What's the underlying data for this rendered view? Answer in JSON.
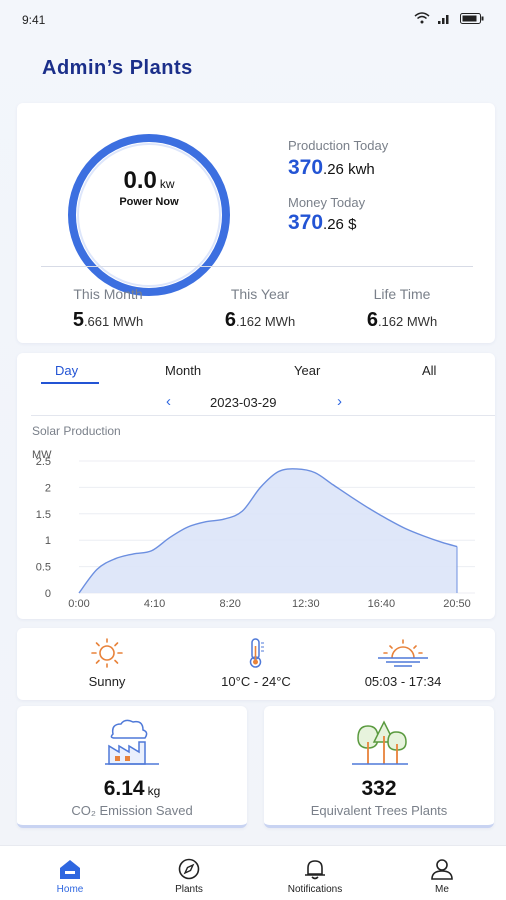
{
  "status_bar": {
    "time": "9:41"
  },
  "page_title": "Admin’s Plants",
  "gauge": {
    "value": "0.0",
    "unit": "kw",
    "label": "Power Now"
  },
  "production_today": {
    "label": "Production Today",
    "value_int": "370",
    "value_dec": ".26 kwh"
  },
  "money_today": {
    "label": "Money Today",
    "value_int": "370",
    "value_dec": ".26 $"
  },
  "periods": [
    {
      "label": "This Month",
      "value_int": "5",
      "value_dec": ".661 MWh"
    },
    {
      "label": "This Year",
      "value_int": "6",
      "value_dec": ".162 MWh"
    },
    {
      "label": "Life Time",
      "value_int": "6",
      "value_dec": ".162 MWh"
    }
  ],
  "tabs": [
    {
      "label": "Day",
      "active": true
    },
    {
      "label": "Month",
      "active": false
    },
    {
      "label": "Year",
      "active": false
    },
    {
      "label": "All",
      "active": false
    }
  ],
  "date": "2023-03-29",
  "chart_title": "Solar Production",
  "chart_data": {
    "type": "area",
    "title": "",
    "xlabel": "",
    "ylabel": "MW",
    "ylim": [
      0,
      2.5
    ],
    "yticks": [
      "0",
      "0.5",
      "1",
      "1.5",
      "2",
      "2.5"
    ],
    "xticks": [
      "0:00",
      "4:10",
      "8:20",
      "12:30",
      "16:40",
      "20:50"
    ],
    "grid": true,
    "series": [
      {
        "x": [
          "0:00",
          "1:00",
          "2:00",
          "3:00",
          "4:00",
          "5:00",
          "6:00",
          "7:00",
          "8:00",
          "9:00",
          "10:00",
          "11:00",
          "12:00",
          "13:00",
          "14:00",
          "15:00",
          "16:00",
          "17:00",
          "18:00",
          "19:00",
          "20:00",
          "20:50"
        ],
        "values": [
          0,
          0.45,
          0.65,
          0.74,
          0.8,
          1.05,
          1.25,
          1.35,
          1.4,
          1.55,
          2.0,
          2.3,
          2.35,
          2.28,
          2.05,
          1.82,
          1.6,
          1.4,
          1.22,
          1.08,
          0.96,
          0.88
        ]
      }
    ],
    "colors": {
      "line": "#6c8fe0",
      "fill": "#dbe4f8"
    }
  },
  "weather": [
    {
      "icon": "sun-icon",
      "text": "Sunny"
    },
    {
      "icon": "thermometer-icon",
      "text": "10°C - 24°C"
    },
    {
      "icon": "sunrise-icon",
      "text": "05:03 - 17:34"
    }
  ],
  "co2": {
    "value": "6.14",
    "unit": "kg",
    "label": "CO₂ Emission Saved",
    "icon": "factory-cloud-icon"
  },
  "trees": {
    "value": "332",
    "label": "Equivalent Trees Plants",
    "icon": "trees-icon"
  },
  "nav": [
    {
      "label": "Home",
      "icon": "home-icon",
      "active": true
    },
    {
      "label": "Plants",
      "icon": "compass-icon",
      "active": false
    },
    {
      "label": "Notifications",
      "icon": "bell-icon",
      "active": false
    },
    {
      "label": "Me",
      "icon": "person-icon",
      "active": false
    }
  ],
  "colors": {
    "accent": "#2354d4",
    "title": "#1b2f8a",
    "gauge_ring": "#3c6fe0"
  }
}
